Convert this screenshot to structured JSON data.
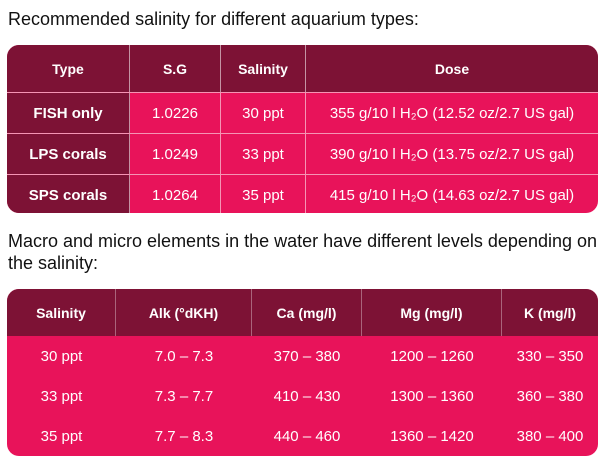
{
  "heading1": "Recommended salinity for different aquarium types:",
  "table1": {
    "headers": [
      "Type",
      "S.G",
      "Salinity",
      "Dose"
    ],
    "rows": [
      [
        "FISH only",
        "1.0226",
        "30 ppt",
        "355 g/10 l H₂O (12.52 oz/2.7 US gal)"
      ],
      [
        "LPS corals",
        "1.0249",
        "33 ppt",
        "390 g/10 l H₂O (13.75 oz/2.7 US gal)"
      ],
      [
        "SPS corals",
        "1.0264",
        "35 ppt",
        "415 g/10 l H₂O (14.63 oz/2.7 US gal)"
      ]
    ]
  },
  "heading2": "Macro and micro elements in the water have different levels depending on the salinity:",
  "table2": {
    "headers": [
      "Salinity",
      "Alk (°dKH)",
      "Ca (mg/l)",
      "Mg (mg/l)",
      "K (mg/l)"
    ],
    "rows": [
      [
        "30 ppt",
        "7.0 – 7.3",
        "370 – 380",
        "1200 – 1260",
        "330 – 350"
      ],
      [
        "33 ppt",
        "7.3 – 7.7",
        "410 – 430",
        "1300 – 1360",
        "360 – 380"
      ],
      [
        "35 ppt",
        "7.7 – 8.3",
        "440 – 460",
        "1360 – 1420",
        "380 – 400"
      ]
    ]
  },
  "colors": {
    "header_bg": "#7d1235",
    "body_bg": "#e8135a",
    "text": "#ffffff"
  }
}
